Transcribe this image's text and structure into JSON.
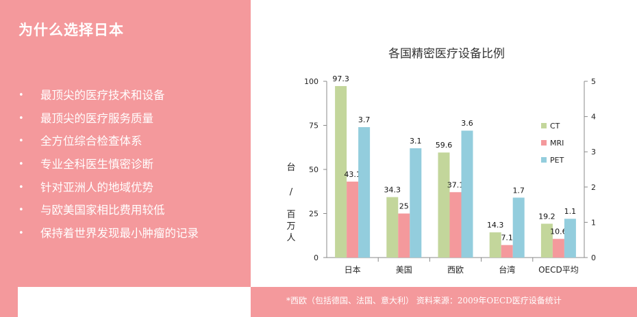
{
  "slide": {
    "title": "为什么选择日本",
    "bullet_symbol": "•",
    "bullets": [
      "最顶尖的医疗技术和设备",
      "最顶尖的医疗服务质量",
      "全方位综合检查体系",
      "专业全科医生慎密诊断",
      "针对亚洲人的地域优势",
      "与欧美国家相比费用较低",
      "保持着世界发现最小肿瘤的记录"
    ],
    "source_note": "*西欧（包括德国、法国、意大利）    资料来源：2009年OECD医疗设备统计"
  },
  "chart_data": {
    "type": "bar",
    "title": "各国精密医疗设备比例",
    "ylabel": "台 / 百万人",
    "categories": [
      "日本",
      "美国",
      "西欧",
      "台湾",
      "OECD平均"
    ],
    "y_left_lim": [
      0,
      100
    ],
    "y_left_ticks": [
      "0",
      "25",
      "50",
      "75",
      "100"
    ],
    "y_right_lim": [
      0,
      5
    ],
    "y_right_ticks": [
      "0",
      "1",
      "2",
      "3",
      "4",
      "5"
    ],
    "legend_position": "right",
    "grid": false,
    "series": [
      {
        "name": "CT",
        "axis": "left",
        "color": "#c3d69b",
        "values": [
          97.3,
          34.3,
          59.6,
          14.3,
          19.2
        ],
        "labels": [
          "97.3",
          "34.3",
          "59.6",
          "14.3",
          "19.2"
        ]
      },
      {
        "name": "MRI",
        "axis": "left",
        "color": "#f4999c",
        "values": [
          43.1,
          25,
          37.1,
          7.1,
          10.6
        ],
        "labels": [
          "43.1",
          "25",
          "37.1",
          "7.1",
          "10.6"
        ]
      },
      {
        "name": "PET",
        "axis": "right",
        "color": "#93cddd",
        "values": [
          3.7,
          3.1,
          3.6,
          1.7,
          1.1
        ],
        "labels": [
          "3.7",
          "3.1",
          "3.6",
          "1.7",
          "1.1"
        ]
      }
    ]
  }
}
